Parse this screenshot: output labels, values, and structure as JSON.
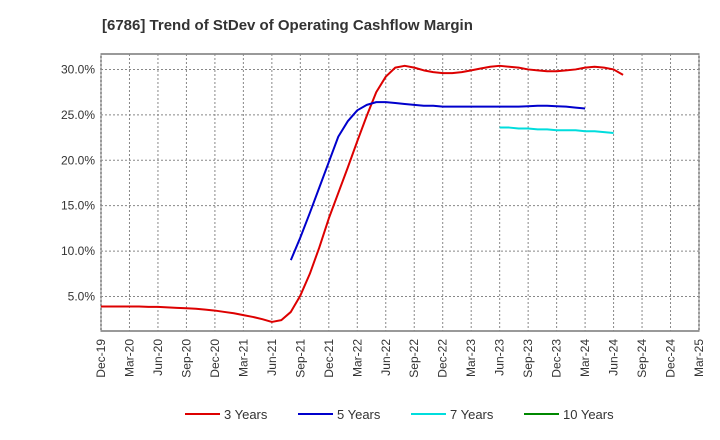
{
  "chart_data": {
    "type": "line",
    "title": "[6786]  Trend of StDev of Operating Cashflow Margin",
    "xlabel": "",
    "ylabel": "",
    "ylim": [
      1.2,
      31.7
    ],
    "y_ticks": [
      "5.0%",
      "10.0%",
      "15.0%",
      "20.0%",
      "25.0%",
      "30.0%"
    ],
    "y_tick_values": [
      5,
      10,
      15,
      20,
      25,
      30
    ],
    "x_ticks": [
      "Dec-19",
      "Mar-20",
      "Jun-20",
      "Sep-20",
      "Dec-20",
      "Mar-21",
      "Jun-21",
      "Sep-21",
      "Dec-21",
      "Mar-22",
      "Jun-22",
      "Sep-22",
      "Dec-22",
      "Mar-23",
      "Jun-23",
      "Sep-23",
      "Dec-23",
      "Mar-24",
      "Jun-24",
      "Sep-24",
      "Dec-24",
      "Mar-25"
    ],
    "x_tick_extra": "Mar-25",
    "grid": true,
    "legend_position": "bottom",
    "series": [
      {
        "name": "3 Years",
        "color": "#dd0000",
        "start_index": 0,
        "values": [
          3.9,
          3.9,
          3.9,
          3.9,
          3.9,
          3.85,
          3.85,
          3.8,
          3.75,
          3.7,
          3.65,
          3.55,
          3.45,
          3.3,
          3.15,
          2.95,
          2.75,
          2.5,
          2.2,
          2.4,
          3.3,
          5.1,
          7.5,
          10.4,
          13.6,
          16.4,
          19.2,
          22.1,
          24.9,
          27.5,
          29.2,
          30.2,
          30.4,
          30.2,
          29.9,
          29.7,
          29.6,
          29.6,
          29.7,
          29.9,
          30.1,
          30.3,
          30.4,
          30.3,
          30.2,
          30.0,
          29.9,
          29.8,
          29.8,
          29.9,
          30.0,
          30.2,
          30.3,
          30.2,
          30.0,
          29.4
        ]
      },
      {
        "name": "5 Years",
        "color": "#0000cc",
        "start_index": 20,
        "values": [
          9.0,
          11.5,
          14.2,
          17.0,
          19.8,
          22.6,
          24.3,
          25.5,
          26.1,
          26.4,
          26.4,
          26.3,
          26.2,
          26.1,
          26.0,
          26.0,
          25.9,
          25.9,
          25.9,
          25.9,
          25.9,
          25.9,
          25.9,
          25.9,
          25.9,
          25.95,
          26.0,
          26.0,
          25.95,
          25.9,
          25.8,
          25.7
        ]
      },
      {
        "name": "7 Years",
        "color": "#00dddd",
        "start_index": 42,
        "values": [
          23.6,
          23.6,
          23.5,
          23.5,
          23.4,
          23.4,
          23.3,
          23.3,
          23.3,
          23.2,
          23.2,
          23.1,
          23.0
        ]
      },
      {
        "name": "10 Years",
        "color": "#008800",
        "start_index": 0,
        "values": []
      }
    ]
  },
  "legend": {
    "items": [
      {
        "label": "3 Years",
        "color": "#dd0000"
      },
      {
        "label": "5 Years",
        "color": "#0000cc"
      },
      {
        "label": "7 Years",
        "color": "#00dddd"
      },
      {
        "label": "10 Years",
        "color": "#008800"
      }
    ]
  }
}
